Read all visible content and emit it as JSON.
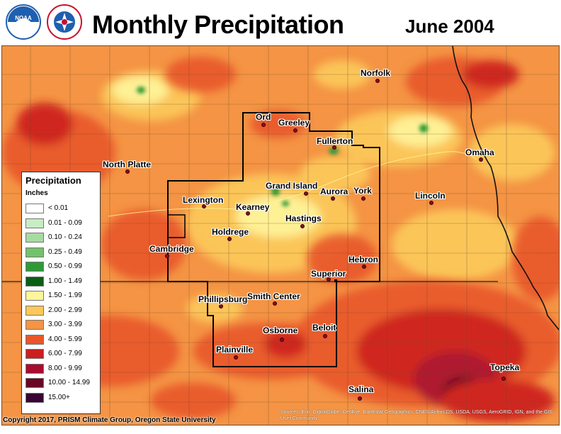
{
  "header": {
    "title": "Monthly Precipitation",
    "date": "June 2004"
  },
  "logos": [
    {
      "name": "noaa-logo",
      "text": "NOAA",
      "color": "#1f5fb0"
    },
    {
      "name": "nws-logo",
      "text": "NATIONAL WEATHER SERVICE",
      "color": "#c8102e"
    }
  ],
  "legend": {
    "title": "Precipitation",
    "units": "Inches",
    "items": [
      {
        "label": "< 0.01",
        "color": "#ffffff"
      },
      {
        "label": "0.01 - 0.09",
        "color": "#c8ecc4"
      },
      {
        "label": "0.10 - 0.24",
        "color": "#a6dca0"
      },
      {
        "label": "0.25 - 0.49",
        "color": "#72c26c"
      },
      {
        "label": "0.50 - 0.99",
        "color": "#2e9a36"
      },
      {
        "label": "1.00 - 1.49",
        "color": "#0a5e16"
      },
      {
        "label": "1.50 - 1.99",
        "color": "#fff59a"
      },
      {
        "label": "2.00 - 2.99",
        "color": "#fcc85a"
      },
      {
        "label": "3.00 - 3.99",
        "color": "#f49444"
      },
      {
        "label": "4.00 - 5.99",
        "color": "#e8562a"
      },
      {
        "label": "6.00 - 7.99",
        "color": "#cc1f1f"
      },
      {
        "label": "8.00 - 9.99",
        "color": "#a80c2e"
      },
      {
        "label": "10.00 - 14.99",
        "color": "#6a0624"
      },
      {
        "label": "15.00+",
        "color": "#3a0434"
      }
    ]
  },
  "cities": [
    {
      "name": "Norfolk"
    },
    {
      "name": "Ord"
    },
    {
      "name": "Greeley"
    },
    {
      "name": "Fullerton"
    },
    {
      "name": "North Platte"
    },
    {
      "name": "Omaha"
    },
    {
      "name": "Grand Island"
    },
    {
      "name": "Lexington"
    },
    {
      "name": "Kearney"
    },
    {
      "name": "Aurora"
    },
    {
      "name": "York"
    },
    {
      "name": "Lincoln"
    },
    {
      "name": "Hastings"
    },
    {
      "name": "Holdrege"
    },
    {
      "name": "Cambridge"
    },
    {
      "name": "Hebron"
    },
    {
      "name": "Superior"
    },
    {
      "name": "Phillipsburg"
    },
    {
      "name": "Smith Center"
    },
    {
      "name": "Osborne"
    },
    {
      "name": "Beloit"
    },
    {
      "name": "Plainville"
    },
    {
      "name": "Topeka"
    },
    {
      "name": "Salina"
    }
  ],
  "footer": {
    "copyright": "Copyright 2017, PRISM Climate Group, Oregon State University",
    "sources": "Sources: Esri, DigitalGlobe, GeoEye, Earthstar Geographics, CNES/Airbus DS, USDA, USGS, AeroGRID, IGN, and the GIS User Community"
  }
}
